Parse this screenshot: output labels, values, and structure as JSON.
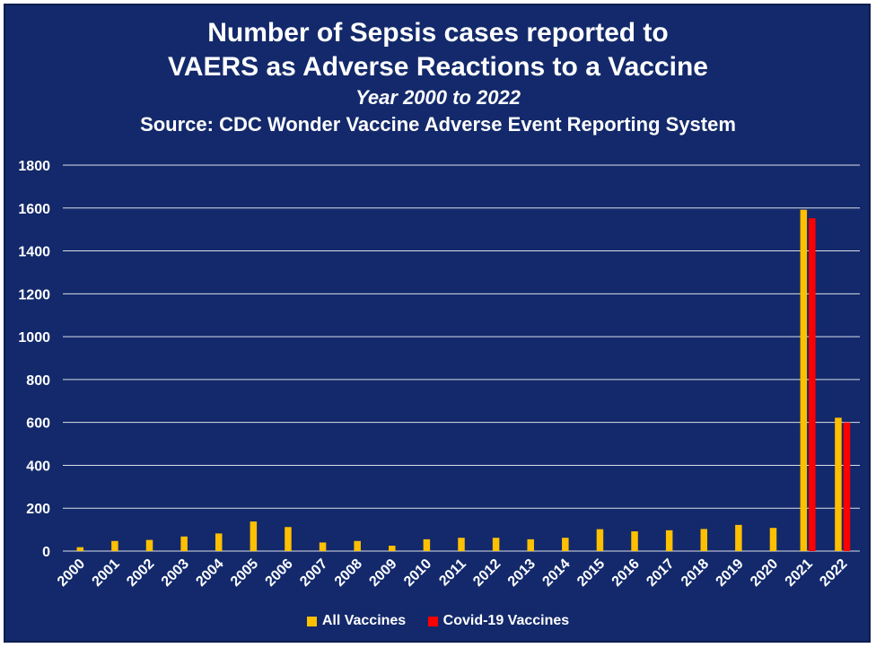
{
  "colors": {
    "background": "#13296b",
    "all_vaccines": "#ffc000",
    "covid_vaccines": "#ff0000",
    "gridline": "#ffffff"
  },
  "chart_data": {
    "type": "bar",
    "title": "Number of Sepsis cases reported to",
    "title2": "VAERS as Adverse Reactions to a Vaccine",
    "subtitle": "Year 2000 to 2022",
    "source": "Source: CDC Wonder Vaccine Adverse Event Reporting System",
    "xlabel": "",
    "ylabel": "",
    "ylim": [
      0,
      1800
    ],
    "yticks": [
      0,
      200,
      400,
      600,
      800,
      1000,
      1200,
      1400,
      1600,
      1800
    ],
    "grid": true,
    "legend_position": "bottom",
    "categories": [
      "2000",
      "2001",
      "2002",
      "2003",
      "2004",
      "2005",
      "2006",
      "2007",
      "2008",
      "2009",
      "2010",
      "2011",
      "2012",
      "2013",
      "2014",
      "2015",
      "2016",
      "2017",
      "2018",
      "2019",
      "2020",
      "2021",
      "2022"
    ],
    "series": [
      {
        "name": "All Vaccines",
        "values": [
          18,
          47,
          52,
          68,
          82,
          138,
          112,
          40,
          47,
          25,
          55,
          62,
          62,
          55,
          62,
          102,
          92,
          97,
          103,
          122,
          108,
          1592,
          622
        ]
      },
      {
        "name": "Covid-19 Vaccines",
        "values": [
          null,
          null,
          null,
          null,
          null,
          null,
          null,
          null,
          null,
          null,
          null,
          null,
          null,
          null,
          null,
          null,
          null,
          null,
          null,
          null,
          null,
          1552,
          600
        ]
      }
    ]
  }
}
